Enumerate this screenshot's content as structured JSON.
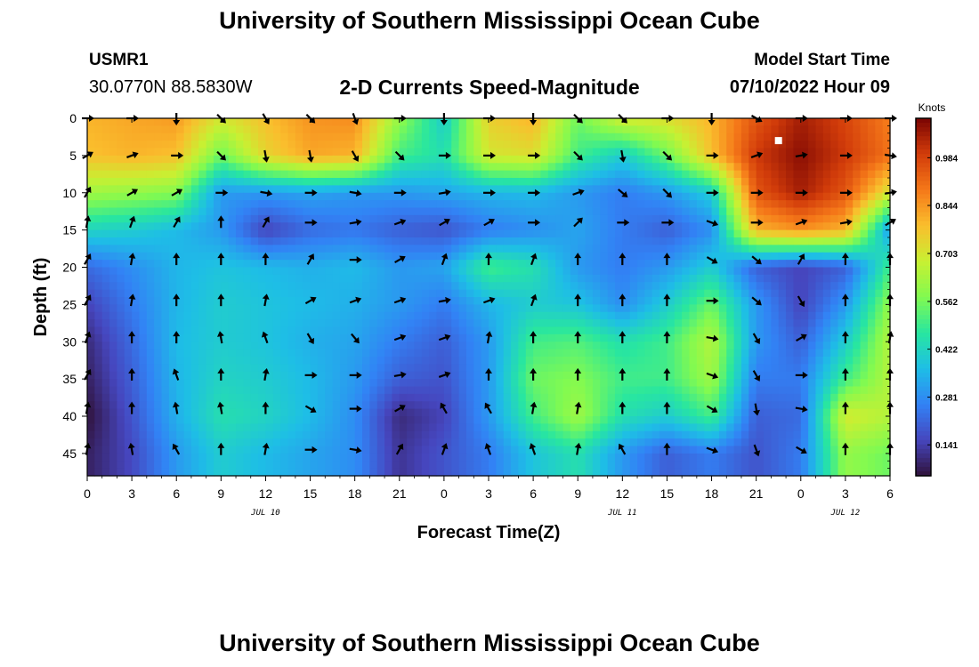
{
  "header": {
    "title": "University of Southern Mississippi Ocean Cube",
    "station_id": "USMR1",
    "station_coords": "30.0770N  88.5830W",
    "subtitle": "2-D Currents Speed-Magnitude",
    "model_start_label": "Model Start Time",
    "model_start_value": "07/10/2022 Hour 09"
  },
  "footer": {
    "title": "University of Southern Mississippi Ocean Cube"
  },
  "chart_data": {
    "type": "heatmap",
    "title": "2-D Currents Speed-Magnitude",
    "xlabel": "Forecast Time(Z)",
    "ylabel": "Depth (ft)",
    "x_tick_labels": [
      "0",
      "3",
      "6",
      "9",
      "12",
      "15",
      "18",
      "21",
      "0",
      "3",
      "6",
      "9",
      "12",
      "15",
      "18",
      "21",
      "0",
      "3",
      "6"
    ],
    "x_values_hours": [
      0,
      3,
      6,
      9,
      12,
      15,
      18,
      21,
      24,
      27,
      30,
      33,
      36,
      39,
      42,
      45,
      48,
      51,
      54
    ],
    "date_labels": [
      {
        "text": "JUL 10",
        "at_hour": 12
      },
      {
        "text": "JUL 11",
        "at_hour": 36
      },
      {
        "text": "JUL 12",
        "at_hour": 51
      }
    ],
    "y_ticks": [
      0,
      5,
      10,
      15,
      20,
      25,
      30,
      35,
      40,
      45
    ],
    "ylim": [
      0,
      48
    ],
    "y_inverted": true,
    "colorbar": {
      "label": "Knots",
      "ticks": [
        "0.984",
        "0.844",
        "0.703",
        "0.562",
        "0.422",
        "0.281",
        "0.141"
      ],
      "range": [
        0.05,
        1.1
      ]
    },
    "depths_ft": [
      0,
      5,
      10,
      15,
      20,
      25,
      30,
      35,
      40,
      45
    ],
    "speed_knots": [
      [
        0.8,
        0.82,
        0.84,
        0.7,
        0.78,
        0.85,
        0.86,
        0.6,
        0.4,
        0.75,
        0.8,
        0.55,
        0.7,
        0.72,
        0.8,
        0.95,
        1.05,
        0.98,
        0.88
      ],
      [
        0.78,
        0.8,
        0.78,
        0.55,
        0.74,
        0.82,
        0.8,
        0.5,
        0.45,
        0.7,
        0.72,
        0.5,
        0.4,
        0.55,
        0.78,
        1.0,
        1.08,
        1.0,
        0.9
      ],
      [
        0.62,
        0.6,
        0.58,
        0.3,
        0.3,
        0.32,
        0.3,
        0.3,
        0.32,
        0.35,
        0.36,
        0.3,
        0.25,
        0.3,
        0.4,
        0.95,
        1.05,
        0.95,
        0.7
      ],
      [
        0.42,
        0.4,
        0.36,
        0.3,
        0.15,
        0.22,
        0.24,
        0.2,
        0.18,
        0.25,
        0.28,
        0.32,
        0.25,
        0.2,
        0.28,
        0.8,
        0.85,
        0.8,
        0.3
      ],
      [
        0.22,
        0.28,
        0.35,
        0.38,
        0.36,
        0.34,
        0.36,
        0.3,
        0.32,
        0.5,
        0.45,
        0.3,
        0.25,
        0.3,
        0.4,
        0.2,
        0.15,
        0.2,
        0.5
      ],
      [
        0.15,
        0.25,
        0.35,
        0.4,
        0.38,
        0.36,
        0.34,
        0.3,
        0.25,
        0.35,
        0.4,
        0.38,
        0.28,
        0.4,
        0.55,
        0.3,
        0.15,
        0.3,
        0.6
      ],
      [
        0.1,
        0.22,
        0.36,
        0.4,
        0.38,
        0.34,
        0.32,
        0.25,
        0.2,
        0.3,
        0.5,
        0.52,
        0.45,
        0.5,
        0.65,
        0.3,
        0.2,
        0.4,
        0.65
      ],
      [
        0.08,
        0.2,
        0.35,
        0.42,
        0.4,
        0.36,
        0.3,
        0.2,
        0.18,
        0.3,
        0.55,
        0.58,
        0.5,
        0.5,
        0.62,
        0.25,
        0.25,
        0.5,
        0.65
      ],
      [
        0.05,
        0.18,
        0.34,
        0.45,
        0.42,
        0.36,
        0.28,
        0.1,
        0.15,
        0.3,
        0.5,
        0.62,
        0.45,
        0.4,
        0.5,
        0.2,
        0.22,
        0.7,
        0.65
      ],
      [
        0.08,
        0.16,
        0.3,
        0.4,
        0.36,
        0.32,
        0.28,
        0.12,
        0.18,
        0.25,
        0.38,
        0.45,
        0.3,
        0.2,
        0.25,
        0.18,
        0.25,
        0.6,
        0.55
      ]
    ],
    "arrow_depths_ft": [
      0,
      5,
      10,
      14,
      19,
      24.5,
      29.5,
      34.5,
      39,
      44.5
    ],
    "arrow_hours": [
      0,
      3,
      6,
      9,
      12,
      15,
      18,
      21,
      24,
      27,
      30,
      33,
      36,
      39,
      42,
      45,
      48,
      51,
      54
    ],
    "arrow_angles_deg": [
      [
        0,
        0,
        90,
        45,
        60,
        45,
        70,
        0,
        90,
        0,
        90,
        45,
        45,
        0,
        90,
        30,
        0,
        0,
        0
      ],
      [
        -30,
        -20,
        0,
        45,
        80,
        80,
        60,
        45,
        0,
        0,
        0,
        45,
        80,
        45,
        0,
        -20,
        -10,
        0,
        10
      ],
      [
        -60,
        -30,
        -30,
        0,
        10,
        0,
        10,
        0,
        -10,
        0,
        0,
        -20,
        40,
        45,
        0,
        0,
        0,
        0,
        -10
      ],
      [
        -80,
        -70,
        -60,
        -90,
        -60,
        0,
        -10,
        -20,
        -30,
        -30,
        0,
        -45,
        0,
        0,
        20,
        0,
        -20,
        -10,
        -30
      ],
      [
        -60,
        -80,
        -90,
        -90,
        -90,
        -60,
        0,
        -30,
        -70,
        -90,
        -70,
        -90,
        -90,
        -90,
        30,
        40,
        -60,
        -90,
        -90
      ],
      [
        -60,
        -80,
        -90,
        -90,
        -80,
        -30,
        -20,
        -20,
        -10,
        -20,
        -70,
        -90,
        -90,
        -90,
        0,
        40,
        60,
        -90,
        -90
      ],
      [
        -70,
        -90,
        -90,
        -100,
        -110,
        60,
        50,
        -20,
        -20,
        -80,
        -90,
        -90,
        -90,
        -90,
        10,
        60,
        -30,
        -90,
        -80
      ],
      [
        -60,
        -90,
        -110,
        -90,
        -80,
        0,
        0,
        -10,
        -20,
        -90,
        -90,
        -90,
        -90,
        -90,
        20,
        60,
        0,
        -90,
        -90
      ],
      [
        -80,
        -90,
        -100,
        -100,
        -90,
        30,
        0,
        -30,
        -120,
        -120,
        -80,
        -80,
        -90,
        -90,
        30,
        80,
        10,
        -90,
        -90
      ],
      [
        -80,
        -100,
        -120,
        -90,
        -80,
        0,
        10,
        -60,
        -70,
        -110,
        -110,
        -80,
        -120,
        -90,
        20,
        70,
        30,
        -90,
        -90
      ]
    ],
    "marker": {
      "hour": 46.5,
      "depth_ft": 3
    }
  }
}
